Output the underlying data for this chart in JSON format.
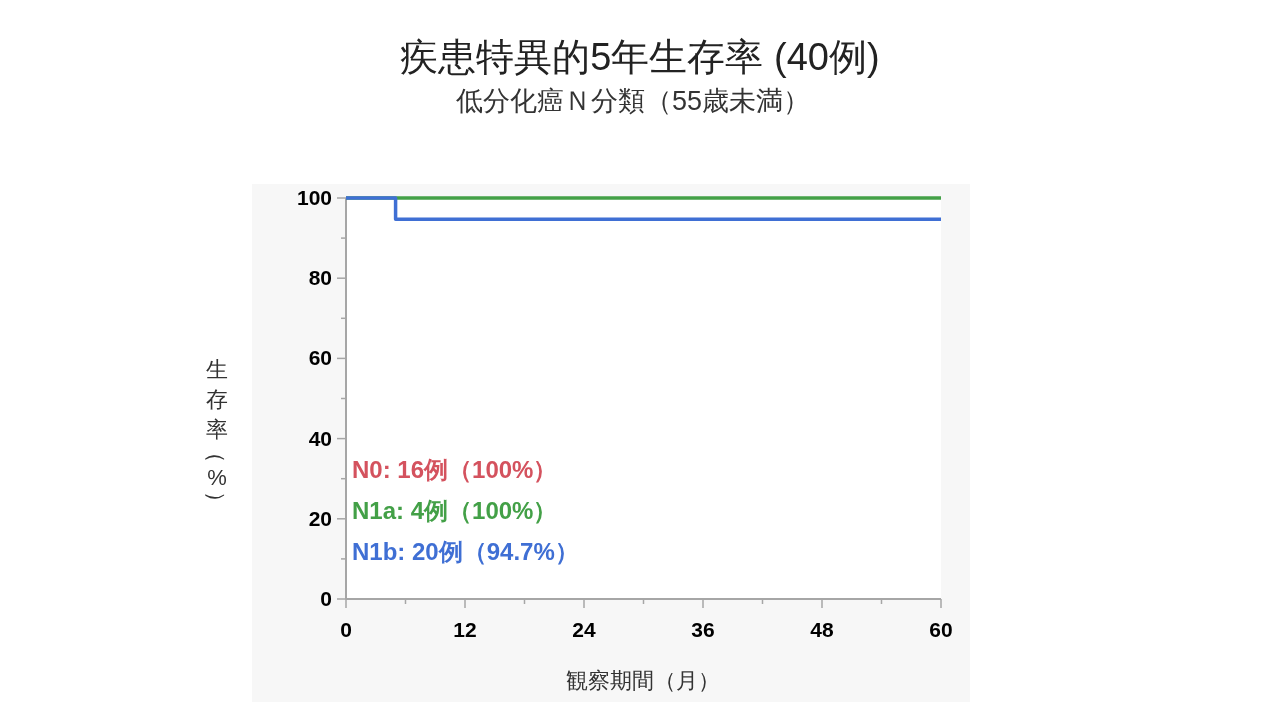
{
  "chart_data": {
    "type": "step",
    "title": "疾患特異的5年生存率 (40例)",
    "subtitle": "低分化癌Ｎ分類（55歳未満）",
    "xlabel": "観察期間（月）",
    "ylabel": "生存率（%）",
    "series": [
      {
        "name": "N0: 16例（100%）",
        "color": "#d4525e",
        "values": [
          null,
          null
        ]
      },
      {
        "name": "N1a: 4例（100%）",
        "color": "#43a047",
        "x": [
          0,
          60
        ],
        "values": [
          100,
          100
        ]
      },
      {
        "name": "N1b: 20例（94.7%）",
        "color": "#3f6fd4",
        "x": [
          0,
          5,
          60
        ],
        "values": [
          100,
          94.7,
          94.7
        ]
      }
    ],
    "xlim": [
      0,
      60
    ],
    "xticks": [
      0,
      {
        "value": 6,
        "label": null
      },
      12,
      {
        "value": 18,
        "label": null
      },
      24,
      {
        "value": 30,
        "label": null
      },
      36,
      {
        "value": 42,
        "label": null
      },
      48,
      {
        "value": 54,
        "label": null
      },
      60
    ],
    "ylim": [
      0,
      100
    ],
    "yticks": [
      0,
      {
        "value": 10,
        "label": null
      },
      20,
      {
        "value": 30,
        "label": null
      },
      40,
      {
        "value": 50,
        "label": null
      },
      60,
      {
        "value": 70,
        "label": null
      },
      80,
      {
        "value": 90,
        "label": null
      },
      100
    ],
    "legend": "bottom left"
  }
}
